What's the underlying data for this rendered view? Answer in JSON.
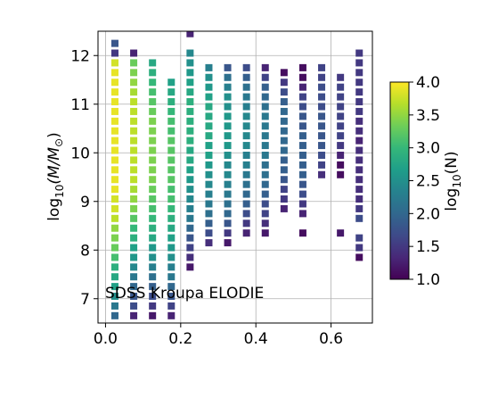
{
  "chart_data": {
    "type": "heatmap",
    "title": "",
    "annotation": "SDSS Kroupa ELODIE",
    "xlabel": "",
    "ylabel_parts": {
      "base": "log",
      "sub": "10",
      "expr": "(M/M",
      "sun": "⊙",
      "close": ")"
    },
    "xlim": [
      -0.02,
      0.71
    ],
    "ylim": [
      6.5,
      12.5
    ],
    "grid": true,
    "x_ticks": [
      0.0,
      0.2,
      0.4,
      0.6
    ],
    "x_tick_labels": [
      "0.0",
      "0.2",
      "0.4",
      "0.6"
    ],
    "y_ticks": [
      7,
      8,
      9,
      10,
      11,
      12
    ],
    "y_tick_labels": [
      "7",
      "8",
      "9",
      "10",
      "11",
      "12"
    ],
    "x_bins": [
      0.025,
      0.075,
      0.125,
      0.175,
      0.225,
      0.275,
      0.325,
      0.375,
      0.425,
      0.475,
      0.525,
      0.575,
      0.625,
      0.675
    ],
    "y_start": 6.65,
    "y_step": 0.2,
    "columns": [
      {
        "x": 0.025,
        "values": [
          2.0,
          2.2,
          2.5,
          2.7,
          2.8,
          2.9,
          3.1,
          3.3,
          3.4,
          3.5,
          3.7,
          3.8,
          3.8,
          3.9,
          3.9,
          3.9,
          3.9,
          3.9,
          3.9,
          3.9,
          3.9,
          3.9,
          3.9,
          3.9,
          3.9,
          3.9,
          3.8,
          1.5,
          1.8
        ]
      },
      {
        "x": 0.075,
        "values": [
          1.3,
          1.7,
          1.8,
          2.0,
          2.2,
          2.4,
          2.6,
          2.7,
          2.9,
          3.0,
          3.2,
          3.4,
          3.5,
          3.6,
          3.7,
          3.7,
          3.7,
          3.7,
          3.7,
          3.7,
          3.7,
          3.7,
          3.7,
          3.6,
          3.5,
          3.4,
          3.3,
          1.3
        ]
      },
      {
        "x": 0.125,
        "values": [
          1.2,
          1.5,
          1.7,
          1.9,
          2.1,
          2.3,
          2.5,
          2.6,
          2.8,
          2.9,
          3.0,
          3.1,
          3.2,
          3.3,
          3.4,
          3.4,
          3.4,
          3.4,
          3.4,
          3.4,
          3.4,
          3.3,
          3.2,
          3.1,
          3.0,
          2.9,
          2.8
        ]
      },
      {
        "x": 0.175,
        "values": [
          1.3,
          1.6,
          1.8,
          2.0,
          2.2,
          2.3,
          2.5,
          2.6,
          2.7,
          2.8,
          2.9,
          3.0,
          3.1,
          3.1,
          3.2,
          3.2,
          3.2,
          3.2,
          3.2,
          3.1,
          3.1,
          3.0,
          2.9,
          2.8,
          2.7
        ]
      },
      {
        "x": 0.225,
        "start": 7.65,
        "values": [
          1.2,
          1.4,
          1.6,
          1.8,
          2.0,
          2.2,
          2.3,
          2.4,
          2.5,
          2.6,
          2.7,
          2.8,
          2.8,
          2.9,
          2.9,
          2.9,
          2.9,
          2.9,
          2.8,
          2.7,
          2.6,
          2.5,
          2.4,
          null,
          1.3
        ]
      },
      {
        "x": 0.275,
        "start": 8.15,
        "values": [
          1.4,
          1.7,
          1.9,
          2.1,
          2.2,
          2.3,
          2.4,
          2.5,
          2.6,
          2.7,
          2.7,
          2.8,
          2.8,
          2.8,
          2.8,
          2.7,
          2.6,
          2.5,
          2.3
        ]
      },
      {
        "x": 0.325,
        "start": 8.15,
        "values": [
          1.2,
          1.5,
          1.8,
          2.0,
          2.1,
          2.2,
          2.3,
          2.4,
          2.4,
          2.5,
          2.6,
          2.6,
          2.6,
          2.6,
          2.5,
          2.5,
          2.3,
          2.1,
          1.8
        ]
      },
      {
        "x": 0.375,
        "start": 8.35,
        "values": [
          1.3,
          1.5,
          1.7,
          1.9,
          2.0,
          2.1,
          2.2,
          2.3,
          2.3,
          2.4,
          2.4,
          2.4,
          2.4,
          2.3,
          2.2,
          2.1,
          1.9,
          1.7
        ]
      },
      {
        "x": 0.425,
        "start": 8.35,
        "values": [
          1.2,
          1.4,
          1.6,
          1.7,
          1.9,
          2.0,
          2.1,
          2.1,
          2.2,
          2.2,
          2.2,
          2.2,
          2.2,
          2.1,
          2.0,
          1.9,
          1.6,
          1.3
        ]
      },
      {
        "x": 0.475,
        "start": 8.85,
        "values": [
          1.3,
          1.5,
          1.6,
          1.8,
          1.9,
          1.9,
          2.0,
          2.0,
          2.0,
          2.0,
          2.0,
          1.9,
          1.7,
          1.5,
          1.1
        ]
      },
      {
        "x": 0.525,
        "start": 8.35,
        "values": [
          1.1,
          null,
          1.3,
          1.5,
          1.7,
          1.8,
          1.9,
          1.9,
          1.9,
          1.9,
          1.9,
          1.8,
          1.8,
          1.7,
          1.6,
          1.3,
          1.1,
          1.1
        ]
      },
      {
        "x": 0.575,
        "start": 9.55,
        "values": [
          1.4,
          1.6,
          1.7,
          1.8,
          1.8,
          1.8,
          1.8,
          1.7,
          1.7,
          1.7,
          1.6,
          1.6
        ]
      },
      {
        "x": 0.625,
        "start": 8.35,
        "values": [
          1.2,
          null,
          null,
          null,
          null,
          null,
          1.1,
          1.1,
          1.3,
          1.5,
          1.6,
          1.6,
          1.6,
          1.6,
          1.6,
          1.6,
          1.5
        ]
      },
      {
        "x": 0.675,
        "start": 7.85,
        "values": [
          1.1,
          1.5,
          1.6,
          null,
          1.7,
          1.5,
          1.4,
          1.4,
          1.4,
          1.4,
          1.4,
          1.4,
          1.3,
          1.4,
          1.4,
          1.5,
          1.5,
          1.5,
          1.5,
          1.5,
          1.5,
          1.5
        ]
      }
    ],
    "colorbar": {
      "label_parts": {
        "base": "log",
        "sub": "10",
        "expr": "(N)"
      },
      "range": [
        1.0,
        4.0
      ],
      "ticks": [
        1.0,
        1.5,
        2.0,
        2.5,
        3.0,
        3.5,
        4.0
      ],
      "tick_labels": [
        "1.0",
        "1.5",
        "2.0",
        "2.5",
        "3.0",
        "3.5",
        "4.0"
      ],
      "colormap": "viridis",
      "stops": [
        "#440154",
        "#482878",
        "#3e4a89",
        "#31688e",
        "#26828e",
        "#1f9e89",
        "#35b779",
        "#6ece58",
        "#b5de2b",
        "#fde725"
      ]
    }
  }
}
